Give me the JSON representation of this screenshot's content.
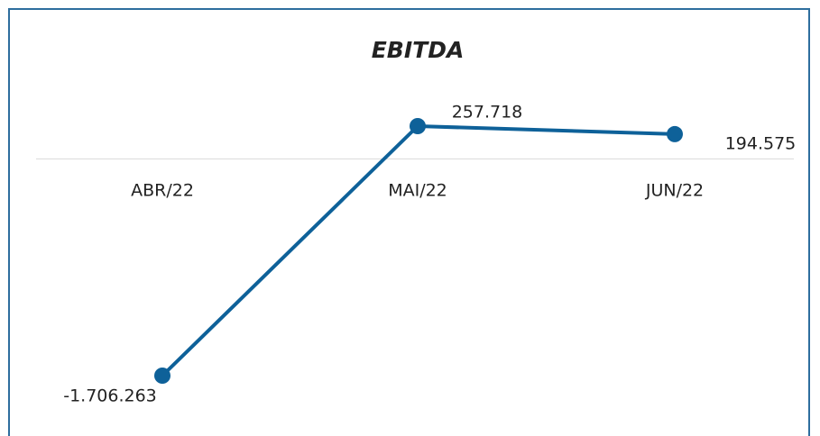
{
  "chart_data": {
    "type": "line",
    "title": "EBITDA",
    "categories": [
      "ABR/22",
      "MAI/22",
      "JUN/22"
    ],
    "series": [
      {
        "name": "EBITDA",
        "color": "#0e6199",
        "values": [
          -1706263,
          257718,
          194575
        ],
        "value_labels": [
          "-1.706.263",
          "257.718",
          "194.575"
        ]
      }
    ]
  }
}
